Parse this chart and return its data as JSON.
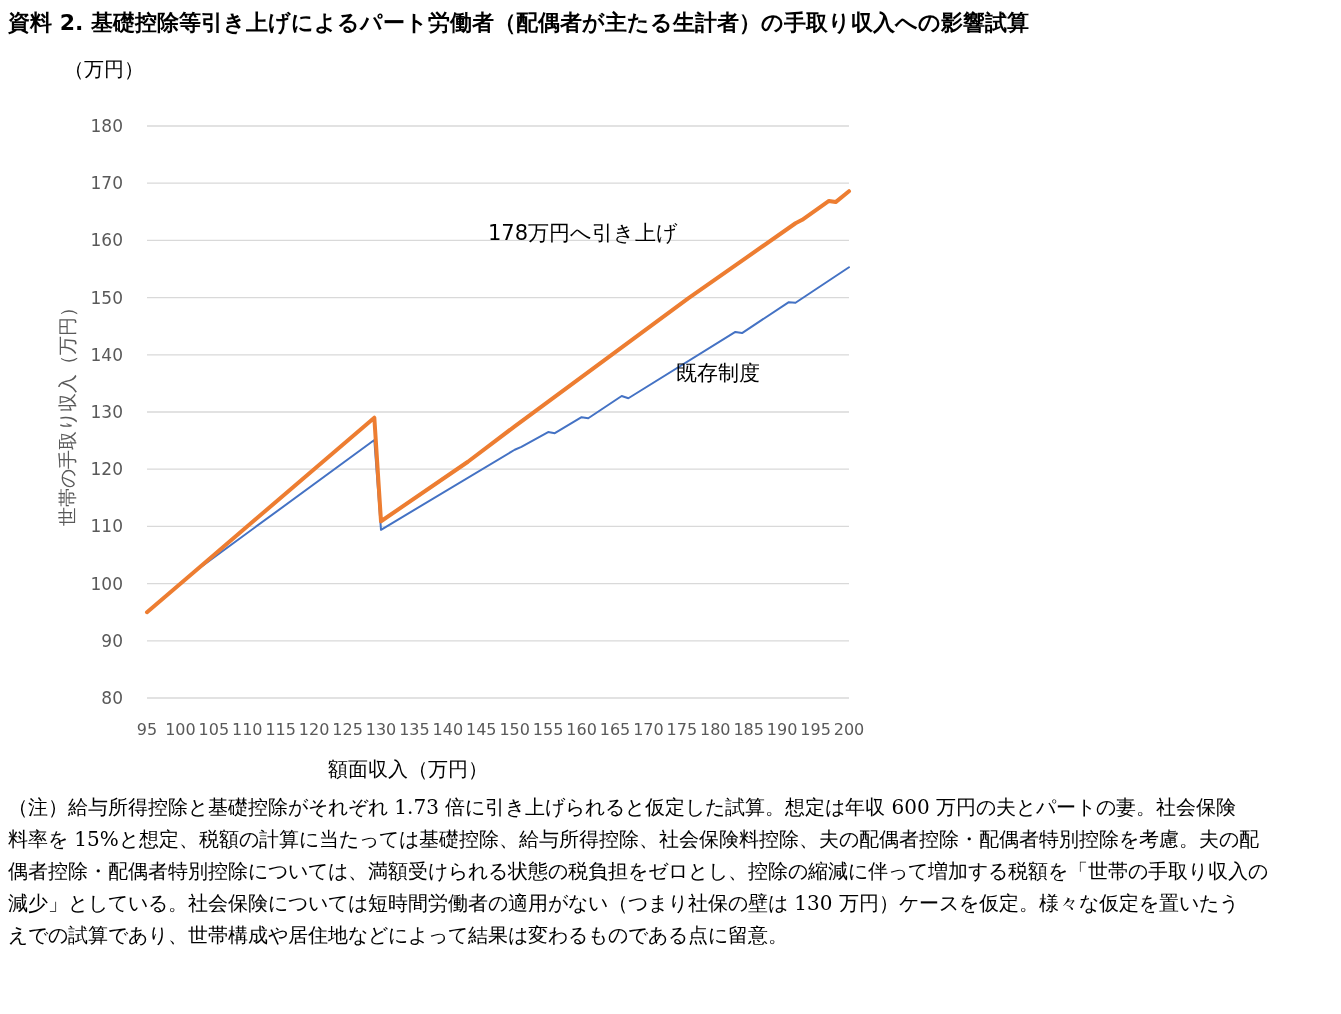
{
  "chart_data": {
    "type": "line",
    "title": "資料 2.  基礎控除等引き上げによるパート労働者（配偶者が主たる生計者）の手取り収入への影響試算",
    "xlabel": "額面収入（万円）",
    "ylabel": "世帯の手取り収入（万円）",
    "annotations": [
      "（万円）",
      "（注）給与所得控除と基礎控除がそれぞれ 1.73 倍に引き上げられると仮定した試算。想定は年収 600 万円の夫とパートの妻。社会保険料率を 15%と想定、税額の計算に当たっては基礎控除、給与所得控除、社会保険料控除、夫の配偶者控除・配偶者特別控除を考慮。夫の配偶者控除・配偶者特別控除については、満額受けられる状態の税負担をゼロとし、控除の縮減に伴って増加する税額を「世帯の手取り収入の減少」としている。社会保険については短時間労働者の適用がない（つまり社保の壁は 130 万円）ケースを仮定。様々な仮定を置いたうえでの試算であり、世帯構成や居住地などによって結果は変わるものである点に留意。"
    ],
    "series": [
      {
        "name": "既存制度",
        "color": "#4472c4",
        "x": [
          95,
          102,
          129,
          130,
          150,
          151,
          155,
          156,
          160,
          161,
          166,
          167,
          183,
          184,
          191,
          192,
          200
        ],
        "values": [
          95,
          102,
          125.1,
          109.4,
          123.4,
          123.9,
          126.5,
          126.3,
          129.1,
          128.9,
          132.8,
          132.4,
          144,
          143.8,
          149.2,
          149.1,
          155.3
        ]
      },
      {
        "name": "178万円へ引き上げ",
        "color": "#ed7d31",
        "x": [
          95,
          102,
          129,
          130,
          143,
          150,
          176,
          192,
          193,
          197,
          198,
          200
        ],
        "values": [
          95,
          102,
          129,
          110.9,
          121.3,
          127.5,
          149.9,
          163,
          163.6,
          166.9,
          166.7,
          168.6
        ]
      }
    ],
    "xlim": [
      95,
      200
    ],
    "xticks": [
      95,
      100,
      105,
      110,
      115,
      120,
      125,
      130,
      135,
      140,
      145,
      150,
      155,
      160,
      165,
      170,
      175,
      180,
      185,
      190,
      195,
      200
    ],
    "ylim": [
      80,
      180
    ],
    "yticks": [
      80,
      90,
      100,
      110,
      120,
      130,
      140,
      150,
      160,
      170,
      180
    ],
    "grid": "y",
    "legend": false
  }
}
